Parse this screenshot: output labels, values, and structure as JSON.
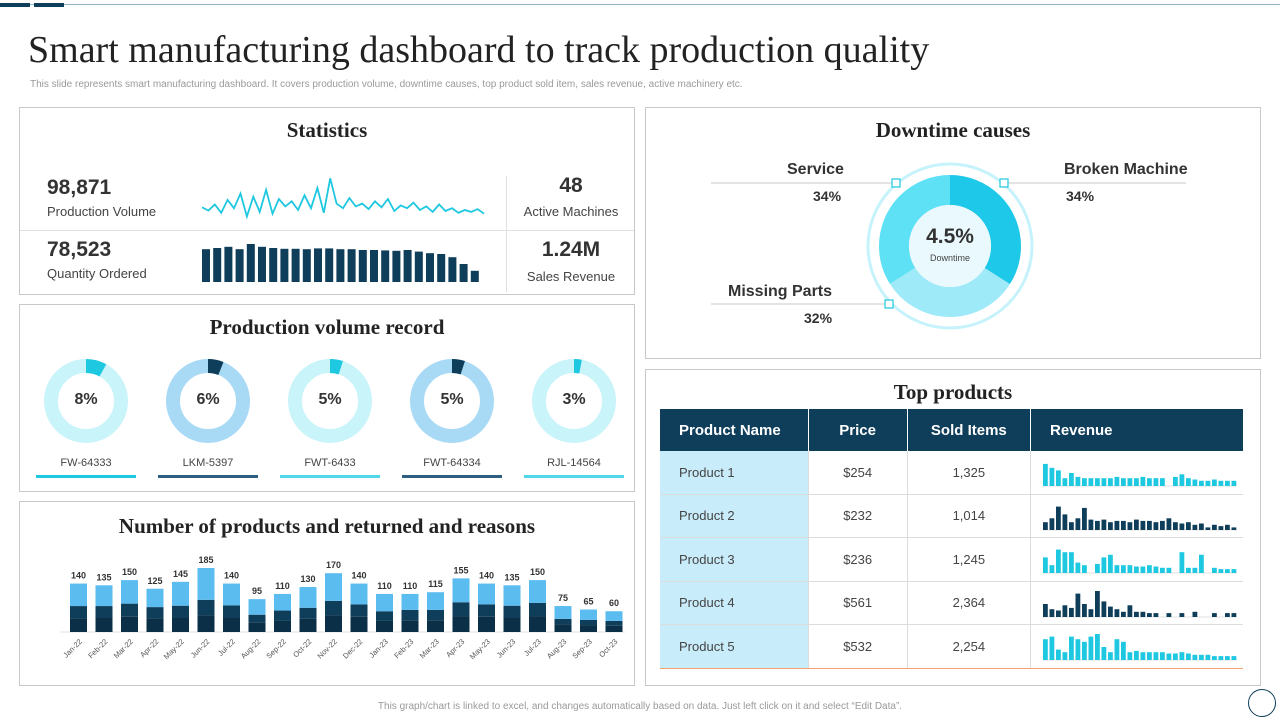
{
  "header": {
    "title": "Smart manufacturing dashboard to track production quality",
    "subtitle": "This slide represents smart manufacturing dashboard. It covers production volume, downtime causes, top product sold item,  sales revenue, active machinery etc."
  },
  "statistics": {
    "title": "Statistics",
    "production_volume": {
      "value": "98,871",
      "label": "Production Volume"
    },
    "quantity_ordered": {
      "value": "78,523",
      "label": "Quantity Ordered"
    },
    "active_machines": {
      "value": "48",
      "label": "Active Machines"
    },
    "sales_revenue": {
      "value": "1.24M",
      "label": "Sales Revenue"
    },
    "sparkline": [
      0.32,
      0.25,
      0.38,
      0.2,
      0.48,
      0.3,
      0.62,
      0.12,
      0.55,
      0.22,
      0.7,
      0.18,
      0.5,
      0.34,
      0.45,
      0.26,
      0.58,
      0.3,
      0.74,
      0.2,
      0.95,
      0.4,
      0.3,
      0.52,
      0.34,
      0.4,
      0.28,
      0.45,
      0.32,
      0.5,
      0.24,
      0.36,
      0.3,
      0.42,
      0.26,
      0.34,
      0.22,
      0.38,
      0.24,
      0.3,
      0.2,
      0.26,
      0.22,
      0.28,
      0.18
    ],
    "bars": [
      0.82,
      0.85,
      0.88,
      0.82,
      0.95,
      0.88,
      0.85,
      0.83,
      0.83,
      0.82,
      0.84,
      0.84,
      0.82,
      0.82,
      0.8,
      0.8,
      0.79,
      0.78,
      0.8,
      0.76,
      0.72,
      0.7,
      0.62,
      0.45,
      0.28
    ]
  },
  "production_volume_record": {
    "title": "Production volume record",
    "items": [
      {
        "label": "FW-64333",
        "percent": 8,
        "pct_label": "8%",
        "ring": "#c9f4fa",
        "fill": "#1ec8e0",
        "line": "#1ec8e0"
      },
      {
        "label": "LKM-5397",
        "percent": 6,
        "pct_label": "6%",
        "ring": "#a9daf5",
        "fill": "#0f3e5b",
        "line": "#2e5f80"
      },
      {
        "label": "FWT-6433",
        "percent": 5,
        "pct_label": "5%",
        "ring": "#c9f4fa",
        "fill": "#1ec8e0",
        "line": "#4fd8ea"
      },
      {
        "label": "FWT-64334",
        "percent": 5,
        "pct_label": "5%",
        "ring": "#a9daf5",
        "fill": "#0f3e5b",
        "line": "#2e5f80"
      },
      {
        "label": "RJL-14564",
        "percent": 3,
        "pct_label": "3%",
        "ring": "#c9f4fa",
        "fill": "#1ec8e0",
        "line": "#4fd8ea"
      }
    ]
  },
  "returns_chart": {
    "title": "Number of products and returned and reasons"
  },
  "chart_data": {
    "type": "bar",
    "stacked": true,
    "title": "Number of products and returned and reasons",
    "categories": [
      "Jan-22",
      "Feb-22",
      "Mar-22",
      "Apr-22",
      "May-22",
      "Jun-22",
      "Jul-22",
      "Aug-22",
      "Sep-22",
      "Oct-22",
      "Nov-22",
      "Dec-22",
      "Jan-23",
      "Feb-23",
      "Mar-23",
      "Apr-23",
      "May-23",
      "Jun-23",
      "Jul-23",
      "Aug-23",
      "Sep-23",
      "Oct-23"
    ],
    "totals": [
      140,
      135,
      150,
      125,
      145,
      185,
      140,
      95,
      110,
      130,
      170,
      140,
      110,
      110,
      115,
      155,
      140,
      135,
      150,
      75,
      65,
      60
    ],
    "series": [
      {
        "color": "#0a2f47",
        "values": [
          40,
          42,
          44,
          40,
          42,
          48,
          42,
          28,
          32,
          38,
          48,
          44,
          32,
          34,
          34,
          46,
          44,
          42,
          46,
          22,
          20,
          18
        ]
      },
      {
        "color": "#0f3e5b",
        "values": [
          35,
          33,
          38,
          32,
          34,
          45,
          35,
          22,
          30,
          32,
          42,
          36,
          28,
          30,
          30,
          40,
          36,
          34,
          38,
          16,
          15,
          14
        ]
      },
      {
        "color": "#5bbcf0",
        "values": [
          65,
          60,
          68,
          53,
          69,
          92,
          63,
          45,
          48,
          60,
          80,
          60,
          50,
          46,
          51,
          69,
          60,
          59,
          66,
          37,
          30,
          28
        ]
      }
    ]
  },
  "downtime": {
    "title": "Downtime causes",
    "center_value": "4.5%",
    "center_label": "Downtime",
    "causes": [
      {
        "name": "Service",
        "pct": "34%",
        "value": 34,
        "color": "#5ee0f5"
      },
      {
        "name": "Broken Machine",
        "pct": "34%",
        "value": 34,
        "color": "#1ec8e8"
      },
      {
        "name": "Missing Parts",
        "pct": "32%",
        "value": 32,
        "color": "#9eeaf8"
      }
    ]
  },
  "top_products": {
    "title": "Top  products",
    "headers": [
      "Product Name",
      "Price",
      "Sold Items",
      "Revenue"
    ],
    "rows": [
      {
        "name": "Product 1",
        "price": "$254",
        "sold": "1,325",
        "color": "#1ec8e0",
        "bars": [
          0.85,
          0.7,
          0.6,
          0.3,
          0.5,
          0.35,
          0.3,
          0.3,
          0.3,
          0.3,
          0.3,
          0.35,
          0.3,
          0.3,
          0.3,
          0.35,
          0.3,
          0.3,
          0.3,
          0,
          0.35,
          0.45,
          0.3,
          0.25,
          0.2,
          0.2,
          0.25,
          0.2,
          0.2,
          0.2
        ]
      },
      {
        "name": "Product 2",
        "price": "$232",
        "sold": "1,014",
        "color": "#0f3e5b",
        "bars": [
          0.3,
          0.45,
          0.9,
          0.6,
          0.3,
          0.45,
          0.85,
          0.4,
          0.35,
          0.4,
          0.3,
          0.35,
          0.35,
          0.3,
          0.4,
          0.35,
          0.35,
          0.3,
          0.35,
          0.45,
          0.3,
          0.25,
          0.3,
          0.2,
          0.25,
          0.1,
          0.2,
          0.15,
          0.2,
          0.1
        ]
      },
      {
        "name": "Product 3",
        "price": "$236",
        "sold": "1,245",
        "color": "#1ec8e0",
        "bars": [
          0.6,
          0.3,
          0.9,
          0.8,
          0.8,
          0.4,
          0.3,
          0,
          0.35,
          0.6,
          0.7,
          0.3,
          0.3,
          0.3,
          0.25,
          0.25,
          0.3,
          0.25,
          0.2,
          0.2,
          0,
          0.8,
          0.2,
          0.2,
          0.7,
          0,
          0.2,
          0.15,
          0.15,
          0.15
        ]
      },
      {
        "name": "Product 4",
        "price": "$561",
        "sold": "2,364",
        "color": "#0f3e5b",
        "bars": [
          0.5,
          0.3,
          0.25,
          0.45,
          0.35,
          0.9,
          0.5,
          0.3,
          1,
          0.6,
          0.4,
          0.3,
          0.2,
          0.45,
          0.2,
          0.2,
          0.15,
          0.15,
          0,
          0.15,
          0,
          0.15,
          0,
          0.2,
          0,
          0,
          0.15,
          0,
          0.15,
          0.15
        ]
      },
      {
        "name": "Product 5",
        "price": "$532",
        "sold": "2,254",
        "color": "#1ec8e0",
        "bars": [
          0.8,
          0.9,
          0.4,
          0.3,
          0.9,
          0.8,
          0.7,
          0.9,
          1,
          0.5,
          0.3,
          0.8,
          0.7,
          0.3,
          0.35,
          0.3,
          0.3,
          0.3,
          0.3,
          0.25,
          0.25,
          0.3,
          0.25,
          0.2,
          0.2,
          0.2,
          0.15,
          0.15,
          0.15,
          0.15
        ]
      }
    ]
  },
  "footer": {
    "note": "This graph/chart is linked to excel, and changes automatically based on data. Just left click on it and select “Edit Data”."
  }
}
